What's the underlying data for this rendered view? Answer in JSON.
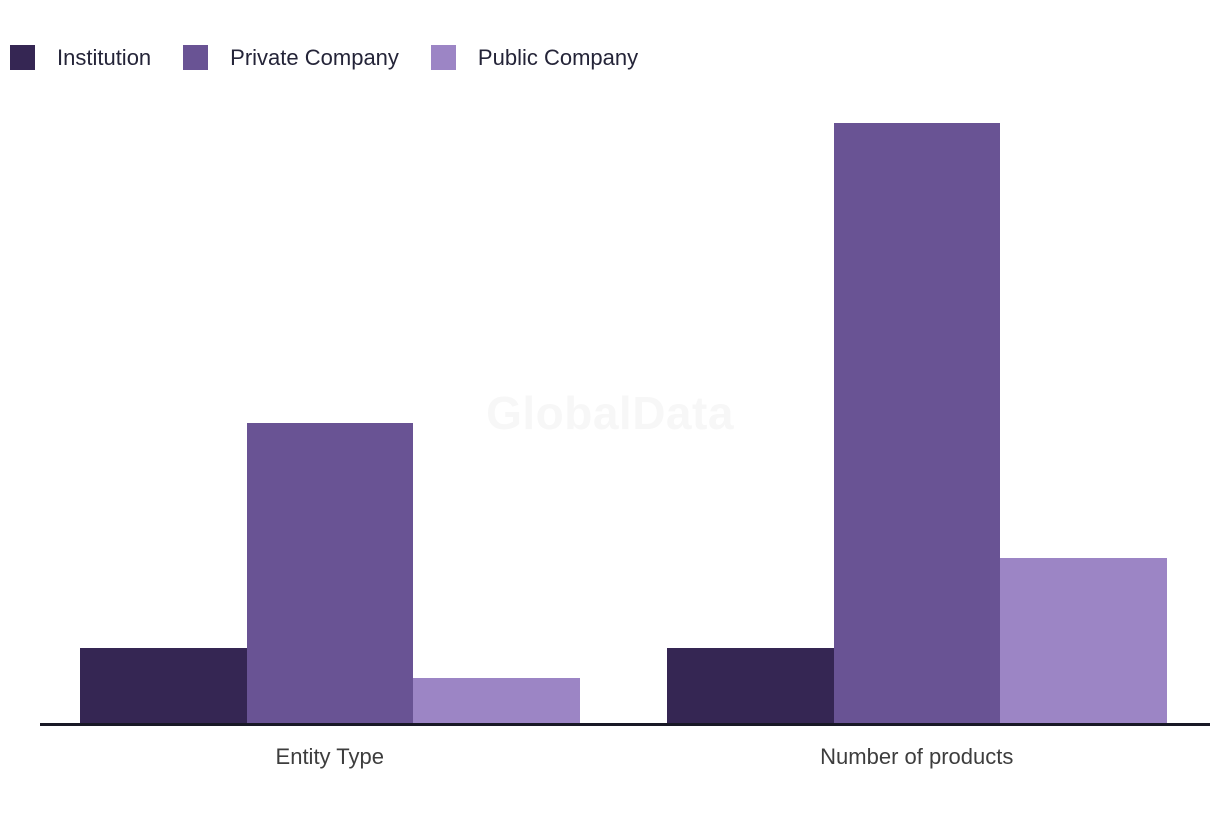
{
  "watermark": {
    "text": "GlobalData"
  },
  "colors": {
    "background": "#ffffff",
    "axis_line": "#181826",
    "legend_text": "#242438",
    "axis_label_text": "#3d3d3d",
    "watermark_text": "#f7f7f7",
    "institution": "#352653",
    "private_company": "#695394",
    "public_company": "#9c85c5"
  },
  "chart_data": {
    "type": "bar",
    "title": "",
    "xlabel": "",
    "ylabel": "",
    "categories": [
      "Entity Type",
      "Number of products"
    ],
    "series": [
      {
        "name": "Institution",
        "color": "#352653",
        "values": [
          5,
          5
        ]
      },
      {
        "name": "Private Company",
        "color": "#695394",
        "values": [
          20,
          40
        ]
      },
      {
        "name": "Public Company",
        "color": "#9c85c5",
        "values": [
          3,
          11
        ]
      }
    ],
    "ylim": [
      0,
      40
    ],
    "grid": false,
    "y_axis_visible": false,
    "legend_position": "top-left",
    "watermark": "GlobalData"
  }
}
